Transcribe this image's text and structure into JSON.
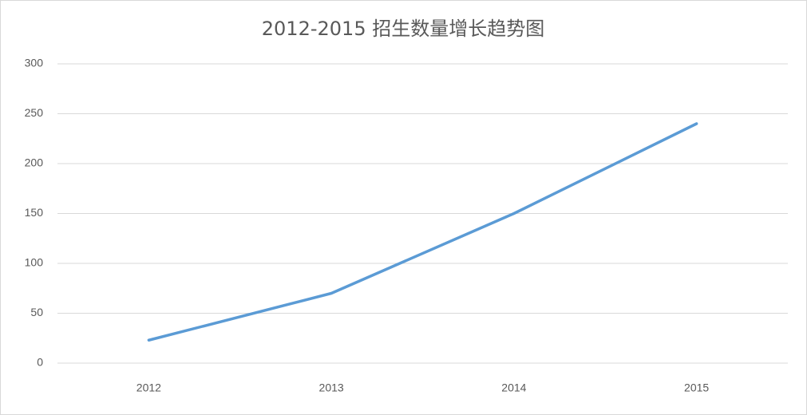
{
  "chart_data": {
    "type": "line",
    "title": "2012-2015 招生数量增长趋势图",
    "categories": [
      "2012",
      "2013",
      "2014",
      "2015"
    ],
    "values": [
      23,
      70,
      150,
      240
    ],
    "color": "#5b9bd5",
    "ylim": [
      0,
      300
    ],
    "yticks": [
      0,
      50,
      100,
      150,
      200,
      250,
      300
    ],
    "grid": true
  }
}
